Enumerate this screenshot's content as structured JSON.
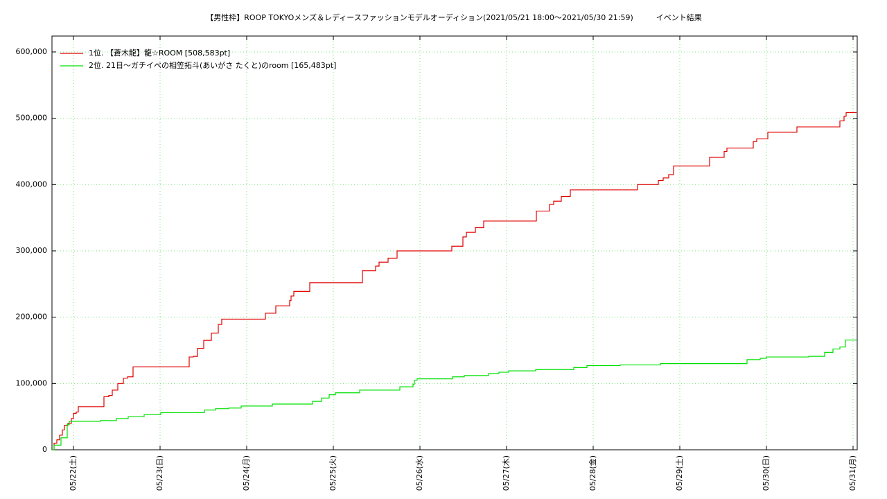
{
  "chart_data": {
    "type": "step-line",
    "title": "【男性枠】ROOP TOKYOメンズ＆レディースファッションモデルオーディション(2021/05/21 18:00～2021/05/30 21:59)　　　イベント結果",
    "xlim": [
      21.752,
      31.048
    ],
    "xticks": [
      {
        "value": 22,
        "label": "05/22(土)"
      },
      {
        "value": 23,
        "label": "05/23(日)"
      },
      {
        "value": 24,
        "label": "05/24(月)"
      },
      {
        "value": 25,
        "label": "05/25(火)"
      },
      {
        "value": 26,
        "label": "05/26(水)"
      },
      {
        "value": 27,
        "label": "05/27(木)"
      },
      {
        "value": 28,
        "label": "05/28(金)"
      },
      {
        "value": 29,
        "label": "05/29(土)"
      },
      {
        "value": 30,
        "label": "05/30(日)"
      },
      {
        "value": 31,
        "label": "05/31(月)"
      }
    ],
    "ylim": [
      0,
      624000
    ],
    "yticks": [
      0,
      {
        "value": 100000,
        "label": "100,000"
      },
      {
        "value": 200000,
        "label": "200,000"
      },
      {
        "value": 300000,
        "label": "300,000"
      },
      {
        "value": 400000,
        "label": "400,000"
      },
      {
        "value": 500000,
        "label": "500,000"
      },
      {
        "value": 600000,
        "label": "600,000"
      }
    ],
    "grid": true,
    "grid_color": "#7de37d",
    "legend": "upper-left",
    "series": [
      {
        "name": "1位. 【蒼木龍】龍☆ROOM [508,583pt]",
        "color": "#e00000",
        "x": [
          21.752,
          21.776,
          21.808,
          21.84,
          21.872,
          21.896,
          21.936,
          21.976,
          22,
          22.032,
          22.056,
          22.352,
          22.408,
          22.448,
          22.512,
          22.576,
          22.624,
          22.688,
          23.336,
          23.384,
          23.432,
          23.504,
          23.592,
          23.672,
          23.712,
          24.216,
          24.336,
          24.496,
          24.512,
          24.544,
          24.728,
          25.336,
          25.488,
          25.528,
          25.632,
          25.736,
          26.368,
          26.496,
          26.536,
          26.64,
          26.736,
          27.344,
          27.496,
          27.544,
          27.632,
          27.736,
          28.512,
          28.752,
          28.808,
          28.872,
          28.928,
          29.344,
          29.512,
          29.544,
          29.848,
          29.888,
          30.016,
          30.352,
          30.848,
          30.896,
          30.92,
          31.04
        ],
        "values": [
          0,
          10000,
          15000,
          22000,
          30000,
          37000,
          40000,
          47000,
          55000,
          57000,
          65000,
          80000,
          82000,
          90000,
          100000,
          108000,
          110000,
          125000,
          140000,
          141000,
          153000,
          165000,
          176000,
          189000,
          197000,
          206000,
          217000,
          225000,
          232000,
          239000,
          252000,
          270000,
          277000,
          283000,
          289000,
          300000,
          307000,
          321000,
          328000,
          335000,
          345000,
          360000,
          370000,
          375000,
          382000,
          392000,
          400000,
          406000,
          410000,
          415000,
          428000,
          441000,
          450000,
          455000,
          465000,
          469000,
          479000,
          487000,
          496000,
          503000,
          508583,
          508583
        ]
      },
      {
        "name": "2位. 21日〜ガチイベの相笠拓斗(あいがさ たくと)のroom [165,483pt]",
        "color": "#00e000",
        "x": [
          21.752,
          21.776,
          21.856,
          21.928,
          21.952,
          22.312,
          22.496,
          22.632,
          22.816,
          23.008,
          23.512,
          23.64,
          23.792,
          23.936,
          24.296,
          24.76,
          24.864,
          24.952,
          25.024,
          25.304,
          25.768,
          25.92,
          25.936,
          25.968,
          26.376,
          26.512,
          26.792,
          26.912,
          27.024,
          27.336,
          27.776,
          27.928,
          28.312,
          28.776,
          29.776,
          29.928,
          30,
          30.488,
          30.672,
          30.768,
          30.848,
          30.912,
          31.04
        ],
        "values": [
          0,
          7000,
          18000,
          38000,
          43000,
          44000,
          47000,
          50000,
          53000,
          56000,
          60000,
          62000,
          63000,
          66000,
          69000,
          73000,
          78000,
          83000,
          86000,
          90000,
          95000,
          99000,
          105000,
          107000,
          110000,
          112000,
          115000,
          117000,
          119000,
          121000,
          124000,
          127000,
          128000,
          130000,
          136000,
          138000,
          140000,
          141000,
          147000,
          152000,
          155000,
          165483,
          165483
        ]
      }
    ]
  }
}
